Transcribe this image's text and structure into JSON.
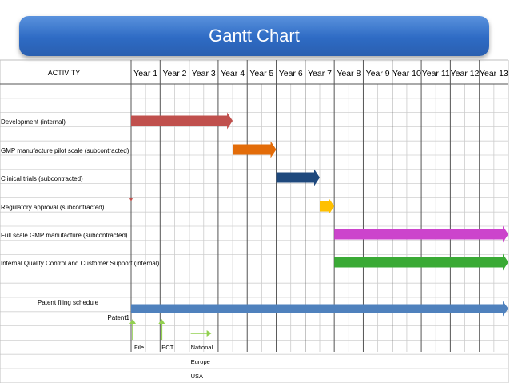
{
  "header": {
    "title": "Gantt Chart"
  },
  "chart_data": {
    "type": "gantt",
    "title": "Gantt Chart",
    "activity_header": "ACTIVITY",
    "periods": [
      "Year 1",
      "Year 2",
      "Year 3",
      "Year 4",
      "Year 5",
      "Year 6",
      "Year 7",
      "Year 8",
      "Year 9",
      "Year 10",
      "Year 11",
      "Year 12",
      "Year 13"
    ],
    "tasks": [
      {
        "label": "Development (internal)",
        "start": 0,
        "end": 3.5,
        "color": "#c0504d"
      },
      {
        "label": "GMP manufacture pilot scale (subcontracted)",
        "start": 3.5,
        "end": 5.0,
        "color": "#e36c09"
      },
      {
        "label": "Clinical trials (subcontracted)",
        "start": 5.0,
        "end": 6.5,
        "color": "#1f497d"
      },
      {
        "label": "Regulatory approval (subcontracted)",
        "start": 6.5,
        "end": 7.0,
        "color": "#ffc000"
      },
      {
        "label": "Full scale GMP manufacture (subcontracted)",
        "start": 7.0,
        "end": 13.0,
        "color": "#cc44cc"
      },
      {
        "label": "Internal Quality Control and Customer Support (internal)",
        "start": 7.0,
        "end": 13.0,
        "color": "#3aaa35"
      }
    ],
    "patent": {
      "section_label": "Patent filing schedule",
      "bar_label": "Patent1",
      "start": 0,
      "end": 13.0,
      "color": "#4f81bd",
      "milestones": [
        {
          "label": "File",
          "at": 0.0,
          "color": "#92d050"
        },
        {
          "label": "PCT",
          "at": 1.0,
          "color": "#92d050"
        },
        {
          "label": "National",
          "at": 2.0,
          "color": "#92d050"
        }
      ],
      "regions": [
        "Europe",
        "USA"
      ]
    }
  }
}
